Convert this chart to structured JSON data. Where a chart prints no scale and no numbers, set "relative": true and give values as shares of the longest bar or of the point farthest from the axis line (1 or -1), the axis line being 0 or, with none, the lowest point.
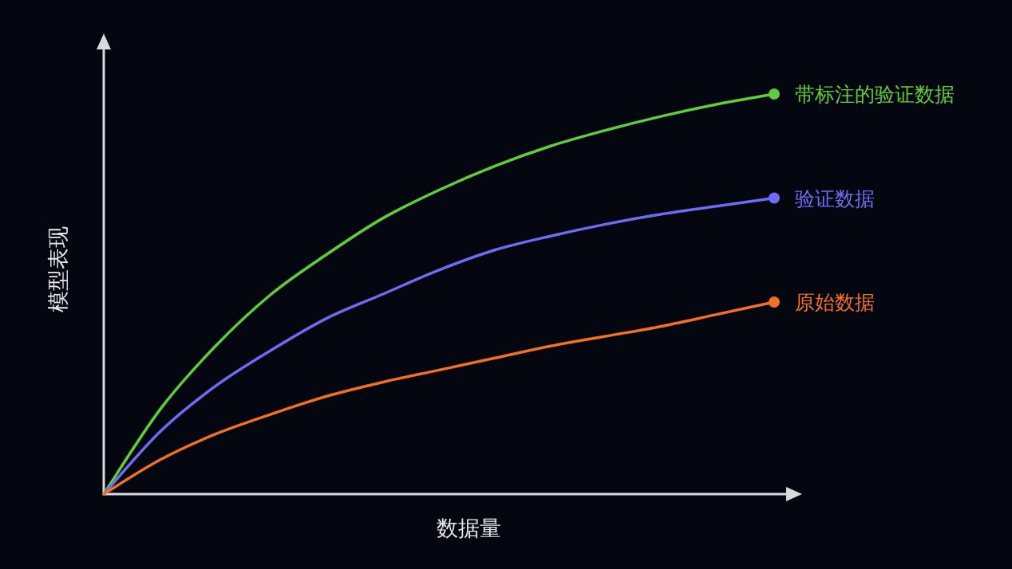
{
  "chart_data": {
    "type": "line",
    "relative": true,
    "xlabel": "数据量",
    "ylabel": "模型表现",
    "categories": [
      null,
      null,
      null,
      null,
      null,
      null,
      null,
      null,
      null,
      null,
      null,
      null,
      null
    ],
    "series": [
      {
        "name": "带标注的验证数据",
        "color": "#5fce3d",
        "values": [
          0,
          0.21,
          0.37,
          0.5,
          0.6,
          0.69,
          0.76,
          0.82,
          0.87,
          0.91,
          0.945,
          0.975,
          1
        ]
      },
      {
        "name": "验证数据",
        "color": "#6d6cf4",
        "values": [
          0,
          0.155,
          0.27,
          0.36,
          0.44,
          0.5,
          0.56,
          0.61,
          0.645,
          0.675,
          0.7,
          0.72,
          0.74
        ]
      },
      {
        "name": "原始数据",
        "color": "#f36f21",
        "values": [
          0,
          0.085,
          0.15,
          0.2,
          0.245,
          0.28,
          0.31,
          0.34,
          0.37,
          0.395,
          0.42,
          0.45,
          0.48
        ]
      }
    ]
  }
}
